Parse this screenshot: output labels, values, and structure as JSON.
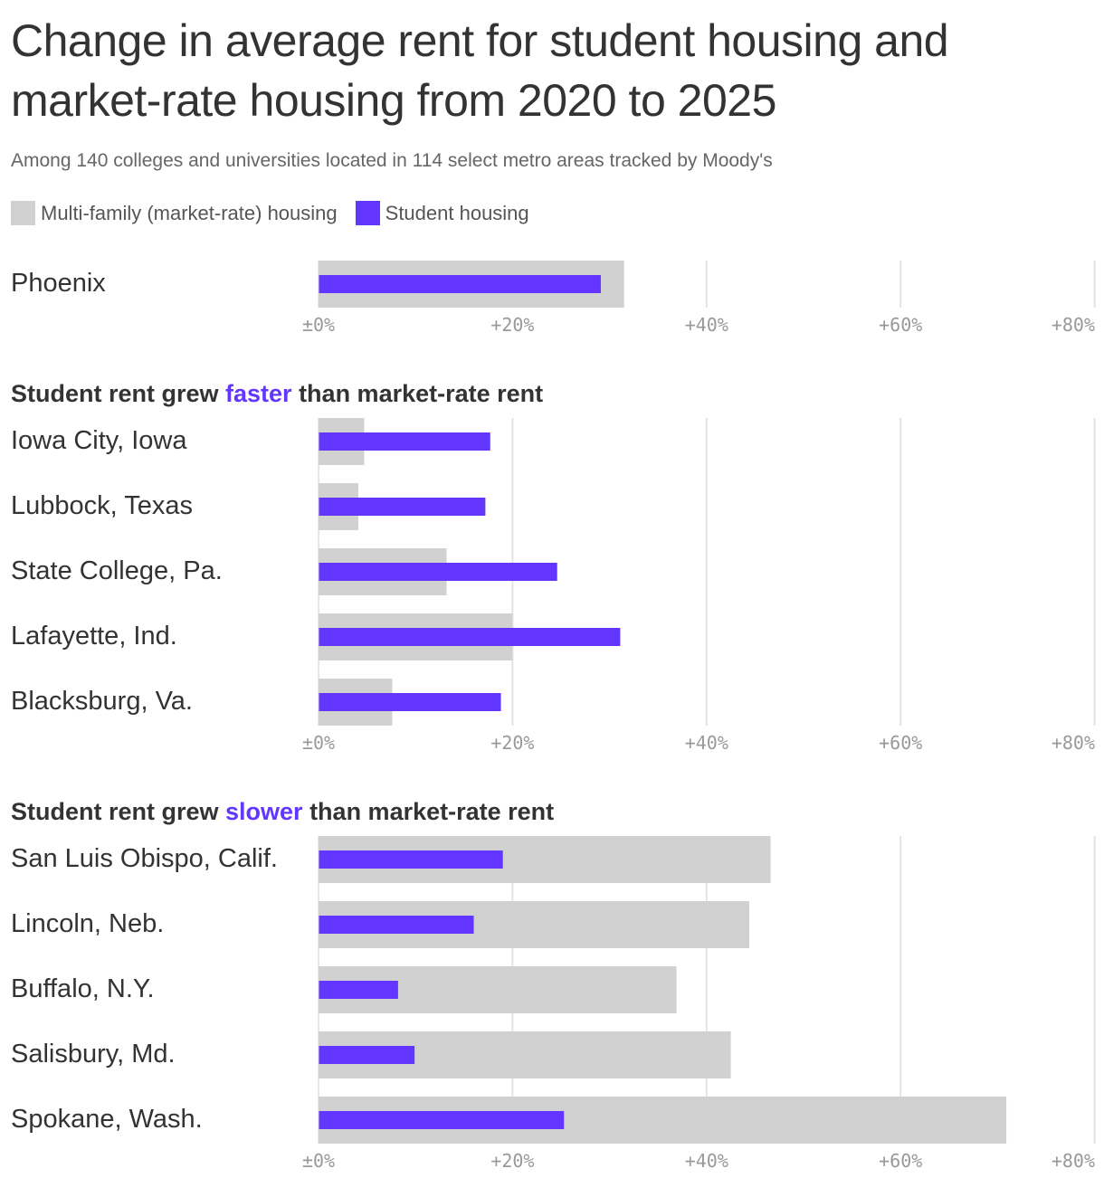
{
  "title": "Change in average rent for student housing and market-rate housing from 2020 to 2025",
  "subtitle": "Among 140 colleges and universities located in 114 select metro areas tracked by Moody's",
  "legend": [
    {
      "label": "Multi-family (market-rate) housing",
      "color": "#d0d1d0"
    },
    {
      "label": "Student housing",
      "color": "#6236ff"
    }
  ],
  "colors": {
    "market": "#d0d1d0",
    "student": "#6236ff",
    "grid": "#e3e3e3",
    "accent": "#6236ff"
  },
  "chart_data": {
    "type": "bar",
    "orientation": "horizontal",
    "units": "percent change",
    "xlim": [
      0,
      80
    ],
    "ticks": [
      {
        "value": 0,
        "label": "±0%"
      },
      {
        "value": 20,
        "label": "+20%"
      },
      {
        "value": 40,
        "label": "+40%"
      },
      {
        "value": 60,
        "label": "+60%"
      },
      {
        "value": 80,
        "label": "+80%"
      }
    ],
    "series_names": [
      "Multi-family (market-rate) housing",
      "Student housing"
    ],
    "groups": [
      {
        "heading_parts": [],
        "rows": [
          {
            "label": "Phoenix",
            "market": 31.5,
            "student": 29.1
          }
        ]
      },
      {
        "heading_parts": [
          {
            "text": "Student rent grew ",
            "accent": false
          },
          {
            "text": "faster",
            "accent": true
          },
          {
            "text": " than market-rate rent",
            "accent": false
          }
        ],
        "rows": [
          {
            "label": "Iowa City, Iowa",
            "market": 4.7,
            "student": 17.7
          },
          {
            "label": "Lubbock, Texas",
            "market": 4.1,
            "student": 17.2
          },
          {
            "label": "State College, Pa.",
            "market": 13.2,
            "student": 24.6
          },
          {
            "label": "Lafayette, Ind.",
            "market": 20.0,
            "student": 31.1
          },
          {
            "label": "Blacksburg, Va.",
            "market": 7.6,
            "student": 18.8
          }
        ]
      },
      {
        "heading_parts": [
          {
            "text": "Student rent grew ",
            "accent": false
          },
          {
            "text": "slower",
            "accent": true
          },
          {
            "text": " than market-rate rent",
            "accent": false
          }
        ],
        "rows": [
          {
            "label": "San Luis Obispo, Calif.",
            "market": 46.6,
            "student": 19.0
          },
          {
            "label": "Lincoln, Neb.",
            "market": 44.4,
            "student": 16.0
          },
          {
            "label": "Buffalo, N.Y.",
            "market": 36.9,
            "student": 8.2
          },
          {
            "label": "Salisbury, Md.",
            "market": 42.5,
            "student": 9.9
          },
          {
            "label": "Spokane, Wash.",
            "market": 70.9,
            "student": 25.3
          }
        ]
      }
    ]
  }
}
